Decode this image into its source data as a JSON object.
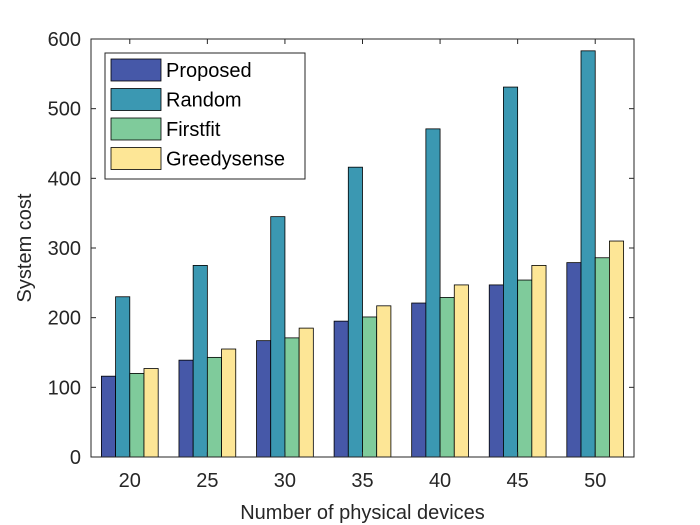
{
  "chart_data": {
    "type": "bar",
    "xlabel": "Number of physical devices",
    "ylabel": "System cost",
    "categories": [
      "20",
      "25",
      "30",
      "35",
      "40",
      "45",
      "50"
    ],
    "ylim": [
      0,
      600
    ],
    "yticks": [
      0,
      100,
      200,
      300,
      400,
      500,
      600
    ],
    "grid": false,
    "legend_position": "top-left",
    "series": [
      {
        "name": "Proposed",
        "color": "#4658a8",
        "values": [
          116,
          139,
          167,
          195,
          221,
          247,
          279
        ]
      },
      {
        "name": "Random",
        "color": "#3b98b2",
        "values": [
          230,
          275,
          345,
          416,
          471,
          531,
          583
        ]
      },
      {
        "name": "Firstfit",
        "color": "#7fcb9b",
        "values": [
          120,
          143,
          171,
          201,
          229,
          254,
          286
        ]
      },
      {
        "name": "Greedysense",
        "color": "#fde696",
        "values": [
          127,
          155,
          185,
          217,
          247,
          275,
          310
        ]
      }
    ]
  }
}
